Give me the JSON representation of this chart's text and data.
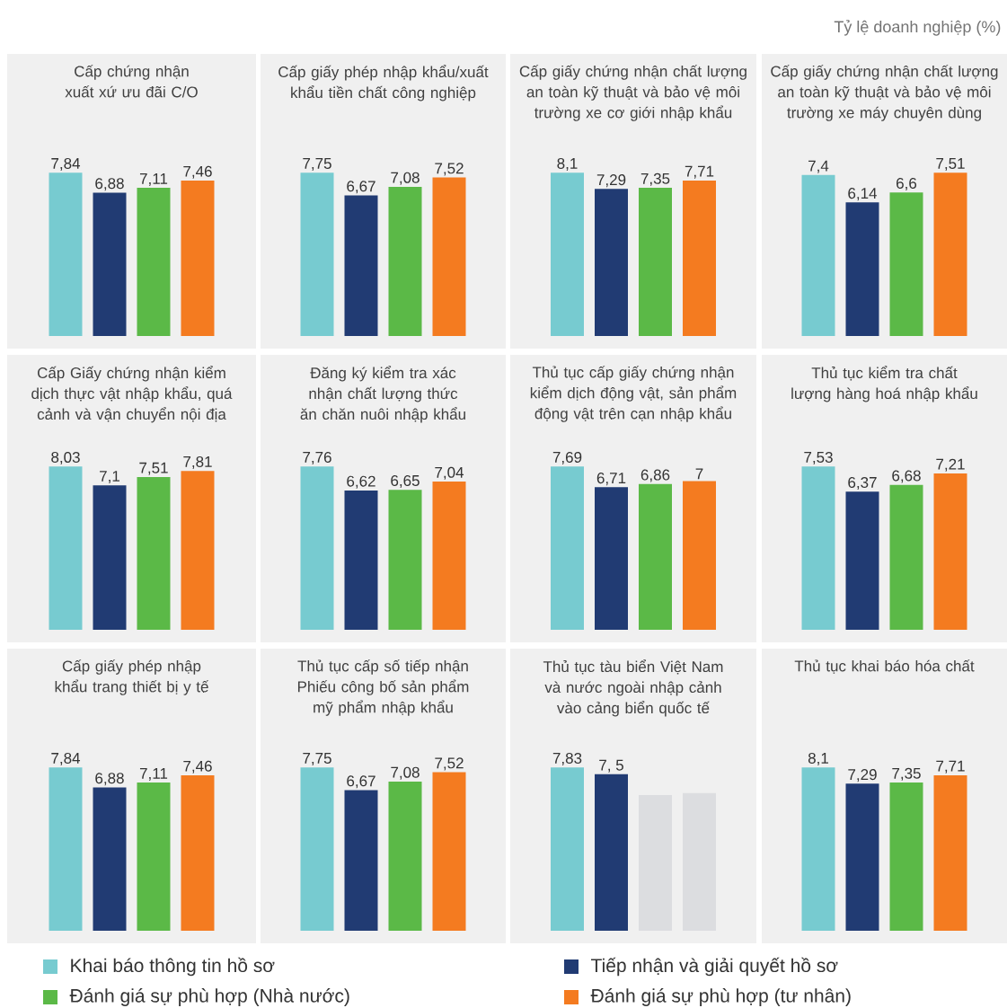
{
  "chart_data": [
    {
      "type": "bar",
      "title": "Cấp chứng nhận xuất xứ ưu đãi C/O",
      "categories": [
        null
      ],
      "tick_labels": false,
      "legend": "bottom",
      "annotations": [
        "Tỷ lệ doanh nghiệp (%)"
      ],
      "series": [
        {
          "name": "Khai báo thông tin hồ sơ",
          "color": "#77cbd0",
          "values": [
            7.84
          ],
          "value_labels": [
            "7,84"
          ]
        },
        {
          "name": "Tiếp nhận và giải quyết hồ sơ",
          "color": "#213b73",
          "values": [
            6.88
          ],
          "value_labels": [
            "6,88"
          ]
        },
        {
          "name": "Đánh giá sự phù hợp (Nhà nước)",
          "color": "#5bb947",
          "values": [
            7.11
          ],
          "value_labels": [
            "7,11"
          ]
        },
        {
          "name": "Đánh giá sự phù hợp (tư nhân)",
          "color": "#f47b20",
          "values": [
            7.46
          ],
          "value_labels": [
            "7,46"
          ]
        }
      ]
    },
    {
      "type": "bar",
      "title": "Cấp giấy phép nhập khẩu/xuất khẩu tiền chất công nghiệp",
      "categories": [
        null
      ],
      "tick_labels": false,
      "series": [
        {
          "color": "#77cbd0",
          "values": [
            7.75
          ],
          "value_labels": [
            "7,75"
          ]
        },
        {
          "color": "#213b73",
          "values": [
            6.67
          ],
          "value_labels": [
            "6,67"
          ]
        },
        {
          "color": "#5bb947",
          "values": [
            7.08
          ],
          "value_labels": [
            "7,08"
          ]
        },
        {
          "color": "#f47b20",
          "values": [
            7.52
          ],
          "value_labels": [
            "7,52"
          ]
        }
      ]
    },
    {
      "type": "bar",
      "title": "Cấp giấy chứng nhận chất lượng an toàn kỹ thuật và bảo vệ môi trường xe cơ giới nhập khẩu",
      "categories": [
        null
      ],
      "tick_labels": false,
      "series": [
        {
          "color": "#77cbd0",
          "values": [
            8.1
          ],
          "value_labels": [
            "8,1"
          ]
        },
        {
          "color": "#213b73",
          "values": [
            7.29
          ],
          "value_labels": [
            "7,29"
          ]
        },
        {
          "color": "#5bb947",
          "values": [
            7.35
          ],
          "value_labels": [
            "7,35"
          ]
        },
        {
          "color": "#f47b20",
          "values": [
            7.71
          ],
          "value_labels": [
            "7,71"
          ]
        }
      ]
    },
    {
      "type": "bar",
      "title": "Cấp giấy chứng nhận chất lượng an toàn kỹ thuật và bảo vệ môi trường xe máy chuyên dùng",
      "categories": [
        null
      ],
      "tick_labels": false,
      "series": [
        {
          "color": "#77cbd0",
          "values": [
            7.4
          ],
          "value_labels": [
            "7,4"
          ]
        },
        {
          "color": "#213b73",
          "values": [
            6.14
          ],
          "value_labels": [
            "6,14"
          ]
        },
        {
          "color": "#5bb947",
          "values": [
            6.6
          ],
          "value_labels": [
            "6,6"
          ]
        },
        {
          "color": "#f47b20",
          "values": [
            7.51
          ],
          "value_labels": [
            "7,51"
          ]
        }
      ]
    },
    {
      "type": "bar",
      "title": "Cấp Giấy chứng nhận kiểm dịch thực vật nhập khẩu, quá cảnh và vận chuyển nội địa",
      "categories": [
        null
      ],
      "tick_labels": false,
      "series": [
        {
          "color": "#77cbd0",
          "values": [
            8.03
          ],
          "value_labels": [
            "8,03"
          ]
        },
        {
          "color": "#213b73",
          "values": [
            7.1
          ],
          "value_labels": [
            "7,1"
          ]
        },
        {
          "color": "#5bb947",
          "values": [
            7.51
          ],
          "value_labels": [
            "7,51"
          ]
        },
        {
          "color": "#f47b20",
          "values": [
            7.81
          ],
          "value_labels": [
            "7,81"
          ]
        }
      ]
    },
    {
      "type": "bar",
      "title": "Đăng ký kiểm tra xác nhận chất lượng thức ăn chăn nuôi nhập khẩu",
      "categories": [
        null
      ],
      "tick_labels": false,
      "series": [
        {
          "color": "#77cbd0",
          "values": [
            7.76
          ],
          "value_labels": [
            "7,76"
          ]
        },
        {
          "color": "#213b73",
          "values": [
            6.62
          ],
          "value_labels": [
            "6,62"
          ]
        },
        {
          "color": "#5bb947",
          "values": [
            6.65
          ],
          "value_labels": [
            "6,65"
          ]
        },
        {
          "color": "#f47b20",
          "values": [
            7.04
          ],
          "value_labels": [
            "7,04"
          ]
        }
      ]
    },
    {
      "type": "bar",
      "title": "Thủ tục cấp giấy chứng nhận kiểm dịch động vật, sản phẩm động vật trên cạn nhập khẩu",
      "categories": [
        null
      ],
      "tick_labels": false,
      "series": [
        {
          "color": "#77cbd0",
          "values": [
            7.69
          ],
          "value_labels": [
            "7,69"
          ]
        },
        {
          "color": "#213b73",
          "values": [
            6.71
          ],
          "value_labels": [
            "6,71"
          ]
        },
        {
          "color": "#5bb947",
          "values": [
            6.86
          ],
          "value_labels": [
            "6,86"
          ]
        },
        {
          "color": "#f47b20",
          "values": [
            7
          ],
          "value_labels": [
            "7"
          ]
        }
      ]
    },
    {
      "type": "bar",
      "title": "Thủ tục kiểm tra chất lượng hàng hoá nhập khẩu",
      "categories": [
        null
      ],
      "tick_labels": false,
      "series": [
        {
          "color": "#77cbd0",
          "values": [
            7.53
          ],
          "value_labels": [
            "7,53"
          ]
        },
        {
          "color": "#213b73",
          "values": [
            6.37
          ],
          "value_labels": [
            "6,37"
          ]
        },
        {
          "color": "#5bb947",
          "values": [
            6.68
          ],
          "value_labels": [
            "6,68"
          ]
        },
        {
          "color": "#f47b20",
          "values": [
            7.21
          ],
          "value_labels": [
            "7,21"
          ]
        }
      ]
    },
    {
      "type": "bar",
      "title": "Cấp giấy phép nhập khẩu trang thiết bị y tế",
      "categories": [
        null
      ],
      "tick_labels": false,
      "series": [
        {
          "color": "#77cbd0",
          "values": [
            7.84
          ],
          "value_labels": [
            "7,84"
          ]
        },
        {
          "color": "#213b73",
          "values": [
            6.88
          ],
          "value_labels": [
            "6,88"
          ]
        },
        {
          "color": "#5bb947",
          "values": [
            7.11
          ],
          "value_labels": [
            "7,11"
          ]
        },
        {
          "color": "#f47b20",
          "values": [
            7.46
          ],
          "value_labels": [
            "7,46"
          ]
        }
      ]
    },
    {
      "type": "bar",
      "title": "Thủ tục cấp số tiếp nhận Phiếu công bố sản phẩm mỹ phẩm nhập khẩu",
      "categories": [
        null
      ],
      "tick_labels": false,
      "series": [
        {
          "color": "#77cbd0",
          "values": [
            7.75
          ],
          "value_labels": [
            "7,75"
          ]
        },
        {
          "color": "#213b73",
          "values": [
            6.67
          ],
          "value_labels": [
            "6,67"
          ]
        },
        {
          "color": "#5bb947",
          "values": [
            7.08
          ],
          "value_labels": [
            "7,08"
          ]
        },
        {
          "color": "#f47b20",
          "values": [
            7.52
          ],
          "value_labels": [
            "7,52"
          ]
        }
      ]
    },
    {
      "type": "bar",
      "title": "Thủ tục tàu biển Việt Nam và nước ngoài nhập cảnh vào cảng biển quốc tế",
      "categories": [
        null
      ],
      "tick_labels": false,
      "series": [
        {
          "color": "#77cbd0",
          "values": [
            7.83
          ],
          "value_labels": [
            "7,83"
          ]
        },
        {
          "color": "#213b73",
          "values": [
            7.5
          ],
          "value_labels": [
            "7,  5"
          ]
        },
        {
          "color": "#dcdde0",
          "values": [
            6.5
          ],
          "value_labels": [
            null
          ]
        },
        {
          "color": "#dcdde0",
          "values": [
            6.6
          ],
          "value_labels": [
            null
          ]
        }
      ]
    },
    {
      "type": "bar",
      "title": "Thủ tục khai báo hóa chất",
      "categories": [
        null
      ],
      "tick_labels": false,
      "series": [
        {
          "color": "#77cbd0",
          "values": [
            8.1
          ],
          "value_labels": [
            "8,1"
          ]
        },
        {
          "color": "#213b73",
          "values": [
            7.29
          ],
          "value_labels": [
            "7,29"
          ]
        },
        {
          "color": "#5bb947",
          "values": [
            7.35
          ],
          "value_labels": [
            "7,35"
          ]
        },
        {
          "color": "#f47b20",
          "values": [
            7.71
          ],
          "value_labels": [
            "7,71"
          ]
        }
      ]
    }
  ]
}
